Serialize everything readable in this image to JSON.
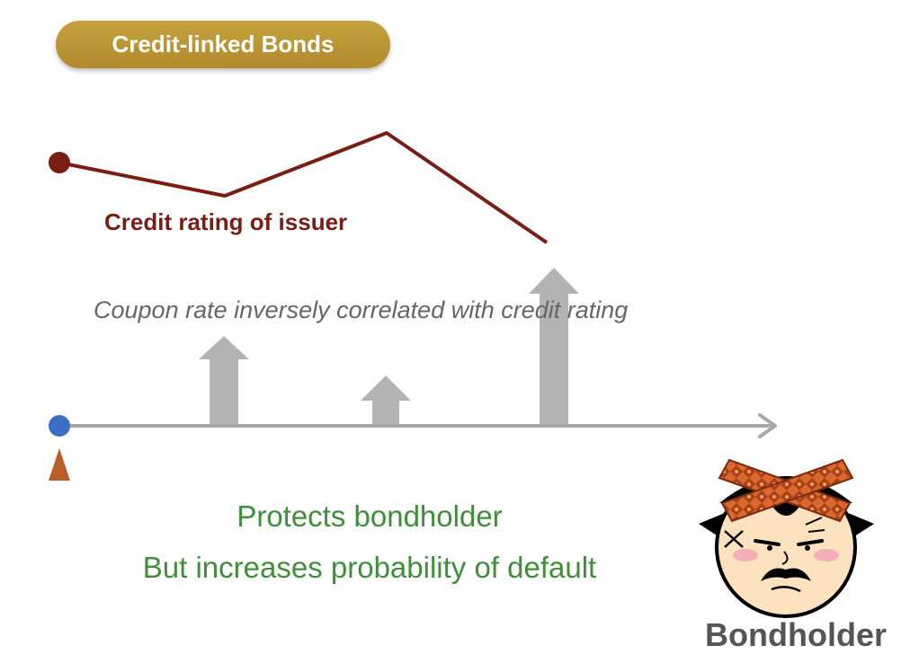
{
  "title": "Credit-linked Bonds",
  "rating_label": "Credit rating of issuer",
  "caption": "Coupon rate inversely correlated with credit rating",
  "protects_text": "Protects bondholder",
  "default_text": "But increases probability of default",
  "bondholder_label": "Bondholder",
  "colors": {
    "title_gold": "#b8952f",
    "rating_line": "#7a1d12",
    "coupon_arrows": "#b3b3b3",
    "timeline": "#a8a8a8",
    "start_dot": "#3a6fc4",
    "start_marker": "#b85e26",
    "green_text": "#3f8f3a"
  },
  "icons": {
    "bondholder": "angry-man-headband-icon",
    "start_dot": "circle-dot-icon",
    "start_marker": "triangle-marker-icon",
    "timeline_arrow": "arrow-right-icon",
    "coupon_arrow": "arrow-up-icon"
  }
}
